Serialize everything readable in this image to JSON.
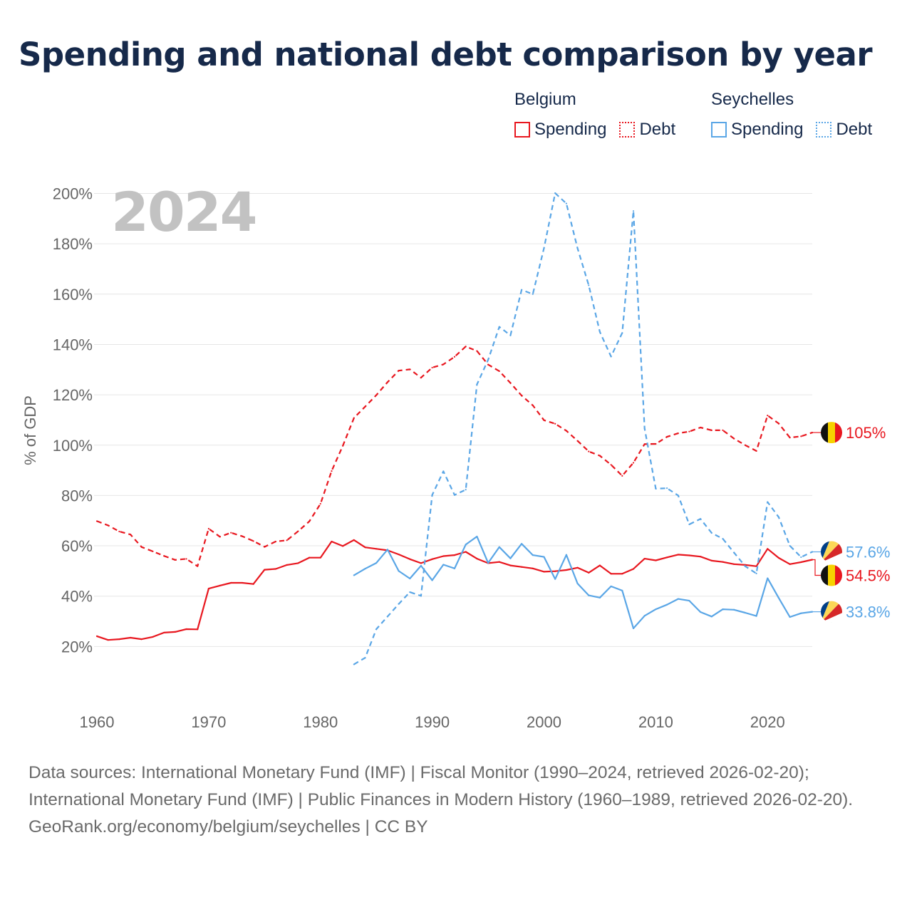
{
  "title": "Spending and national debt comparison by year",
  "legend": {
    "groups": [
      {
        "country": "Belgium",
        "color": "#e8171f",
        "spending_label": "Spending",
        "debt_label": "Debt"
      },
      {
        "country": "Seychelles",
        "color": "#5aa6e6",
        "spending_label": "Spending",
        "debt_label": "Debt"
      }
    ]
  },
  "footer": {
    "sources": "Data sources: International Monetary Fund (IMF) | Fiscal Monitor (1990–2024, retrieved 2026-02-20); International Monetary Fund (IMF) | Public Finances in Modern History (1960–1989, retrieved 2026-02-20).",
    "attribution": "GeoRank.org/economy/belgium/seychelles | CC BY"
  },
  "chart_data": {
    "type": "line",
    "title": "Spending and national debt comparison by year",
    "year_label": "2024",
    "ylabel": "% of GDP",
    "xlabel": "",
    "xlim": [
      1960,
      2024
    ],
    "ylim": [
      0,
      200
    ],
    "grid": true,
    "xticks": [
      1960,
      1970,
      1980,
      1990,
      2000,
      2010,
      2020
    ],
    "yticks": [
      20,
      40,
      60,
      80,
      100,
      120,
      140,
      160,
      180,
      200
    ],
    "ytick_labels": [
      "20%",
      "40%",
      "60%",
      "80%",
      "100%",
      "120%",
      "140%",
      "160%",
      "180%",
      "200%"
    ],
    "series": [
      {
        "name": "Belgium Spending",
        "country": "Belgium",
        "kind": "spending",
        "style": "solid",
        "color": "#e8171f",
        "end_label": "54.5%",
        "flag": "belgium",
        "x": [
          1960,
          1961,
          1962,
          1963,
          1964,
          1965,
          1966,
          1967,
          1968,
          1969,
          1970,
          1971,
          1972,
          1973,
          1974,
          1975,
          1976,
          1977,
          1978,
          1979,
          1980,
          1981,
          1982,
          1983,
          1984,
          1985,
          1986,
          1987,
          1988,
          1989,
          1990,
          1991,
          1992,
          1993,
          1994,
          1995,
          1996,
          1997,
          1998,
          1999,
          2000,
          2001,
          2002,
          2003,
          2004,
          2005,
          2006,
          2007,
          2008,
          2009,
          2010,
          2011,
          2012,
          2013,
          2014,
          2015,
          2016,
          2017,
          2018,
          2019,
          2020,
          2021,
          2022,
          2023,
          2024
        ],
        "y": [
          24.1,
          22.6,
          22.9,
          23.5,
          22.9,
          23.8,
          25.5,
          25.8,
          26.9,
          26.8,
          43.0,
          44.2,
          45.3,
          45.3,
          44.8,
          50.5,
          50.8,
          52.4,
          53.1,
          55.3,
          55.3,
          61.7,
          59.9,
          62.3,
          59.4,
          58.8,
          58.2,
          56.6,
          54.7,
          53.1,
          54.7,
          55.9,
          56.3,
          57.6,
          54.9,
          53.1,
          53.6,
          52.2,
          51.6,
          51.0,
          49.7,
          49.9,
          50.4,
          51.3,
          49.3,
          52.2,
          48.9,
          48.9,
          50.8,
          54.9,
          54.2,
          55.4,
          56.5,
          56.2,
          55.7,
          54.1,
          53.6,
          52.7,
          52.4,
          51.9,
          58.8,
          55.2,
          52.7,
          53.5,
          54.5
        ]
      },
      {
        "name": "Belgium Debt",
        "country": "Belgium",
        "kind": "debt",
        "style": "dashed",
        "color": "#e8171f",
        "end_label": "105%",
        "flag": "belgium",
        "x": [
          1960,
          1961,
          1962,
          1963,
          1964,
          1965,
          1966,
          1967,
          1968,
          1969,
          1970,
          1971,
          1972,
          1973,
          1974,
          1975,
          1976,
          1977,
          1978,
          1979,
          1980,
          1981,
          1982,
          1983,
          1984,
          1985,
          1986,
          1987,
          1988,
          1989,
          1990,
          1991,
          1992,
          1993,
          1994,
          1995,
          1996,
          1997,
          1998,
          1999,
          2000,
          2001,
          2002,
          2003,
          2004,
          2005,
          2006,
          2007,
          2008,
          2009,
          2010,
          2011,
          2012,
          2013,
          2014,
          2015,
          2016,
          2017,
          2018,
          2019,
          2020,
          2021,
          2022,
          2023,
          2024
        ],
        "y": [
          69.8,
          68.1,
          65.7,
          64.5,
          59.5,
          57.8,
          56.0,
          54.4,
          54.8,
          51.9,
          66.8,
          63.6,
          65.2,
          63.8,
          61.9,
          59.6,
          61.7,
          62.2,
          65.8,
          69.7,
          76.7,
          89.7,
          99.7,
          110.8,
          115.3,
          119.9,
          125.0,
          129.6,
          130.1,
          126.8,
          130.8,
          132.1,
          135.1,
          139.2,
          137.4,
          132.0,
          129.4,
          124.7,
          119.7,
          115.8,
          109.9,
          108.5,
          105.7,
          101.7,
          97.5,
          95.8,
          92.2,
          87.8,
          93.0,
          100.4,
          100.5,
          103.3,
          104.7,
          105.4,
          107.0,
          105.9,
          105.9,
          102.6,
          100.0,
          97.7,
          111.8,
          108.6,
          103.0,
          103.5,
          105.0
        ]
      },
      {
        "name": "Seychelles Spending",
        "country": "Seychelles",
        "kind": "spending",
        "style": "solid",
        "color": "#5aa6e6",
        "end_label": "33.8%",
        "flag": "seychelles",
        "x": [
          1983,
          1984,
          1985,
          1986,
          1987,
          1988,
          1989,
          1990,
          1991,
          1992,
          1993,
          1994,
          1995,
          1996,
          1997,
          1998,
          1999,
          2000,
          2001,
          2002,
          2003,
          2004,
          2005,
          2006,
          2007,
          2008,
          2009,
          2010,
          2011,
          2012,
          2013,
          2014,
          2015,
          2016,
          2017,
          2018,
          2019,
          2020,
          2021,
          2022,
          2023,
          2024
        ],
        "y": [
          48.3,
          50.9,
          53.2,
          58.5,
          50.0,
          47.0,
          52.1,
          46.3,
          52.5,
          51.0,
          60.5,
          63.7,
          53.2,
          59.5,
          55.0,
          60.8,
          56.3,
          55.6,
          46.8,
          56.4,
          45.0,
          40.3,
          39.4,
          43.9,
          42.2,
          27.2,
          32.2,
          34.8,
          36.6,
          38.9,
          38.2,
          33.7,
          31.9,
          34.8,
          34.6,
          33.4,
          32.1,
          47.1,
          39.3,
          31.7,
          33.2,
          33.8
        ]
      },
      {
        "name": "Seychelles Debt",
        "country": "Seychelles",
        "kind": "debt",
        "style": "dashed",
        "color": "#5aa6e6",
        "end_label": "57.6%",
        "flag": "seychelles",
        "x": [
          1983,
          1984,
          1985,
          1986,
          1987,
          1988,
          1989,
          1990,
          1991,
          1992,
          1993,
          1994,
          1995,
          1996,
          1997,
          1998,
          1999,
          2000,
          2001,
          2002,
          2003,
          2004,
          2005,
          2006,
          2007,
          2008,
          2009,
          2010,
          2011,
          2012,
          2013,
          2014,
          2015,
          2016,
          2017,
          2018,
          2019,
          2020,
          2021,
          2022,
          2023,
          2024
        ],
        "y": [
          12.9,
          15.5,
          26.9,
          31.9,
          36.9,
          41.6,
          40.1,
          80.2,
          89.6,
          80.2,
          82.3,
          124.1,
          133.9,
          147.0,
          143.6,
          161.7,
          160.0,
          178.3,
          200.1,
          196.0,
          178.2,
          163.5,
          145.0,
          135.2,
          144.6,
          193.0,
          106.6,
          82.7,
          82.9,
          80.0,
          68.5,
          70.7,
          65.1,
          62.8,
          57.3,
          51.9,
          49.0,
          77.4,
          71.4,
          60.0,
          55.5,
          57.6
        ]
      }
    ]
  }
}
